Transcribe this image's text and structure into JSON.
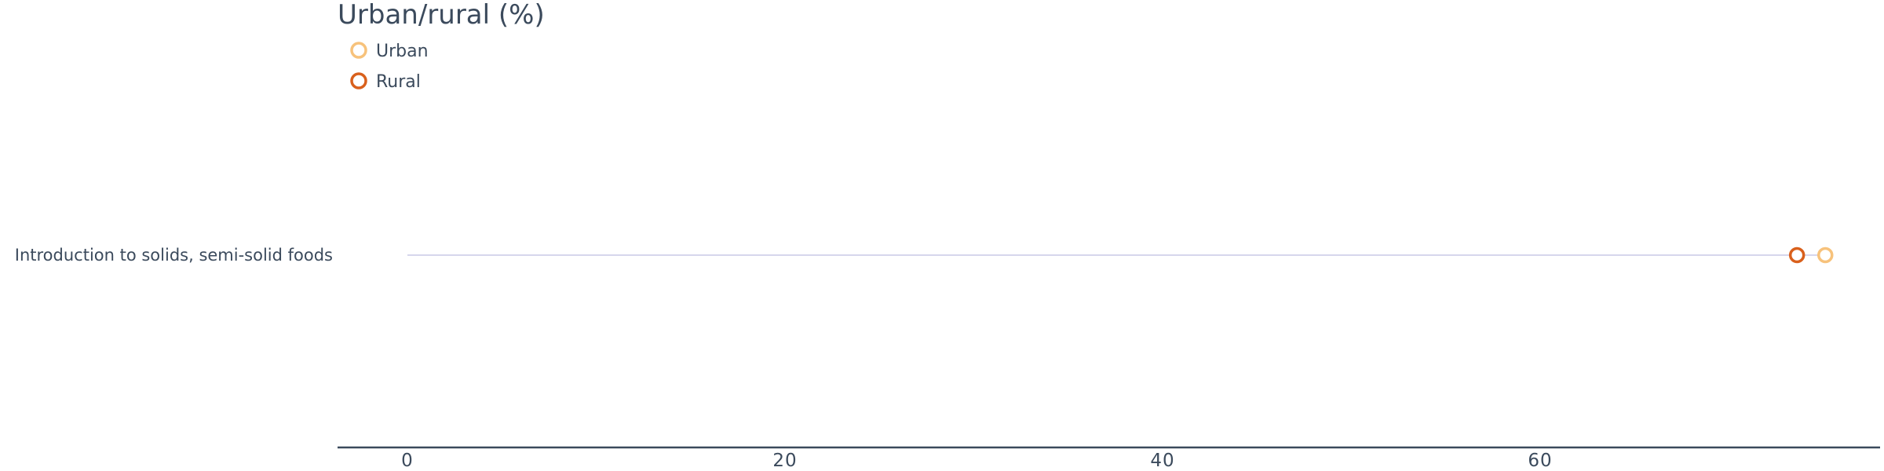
{
  "chart_data": {
    "type": "dot",
    "title": "Urban/rural (%)",
    "categories": [
      "Introduction to solids, semi-solid foods"
    ],
    "series": [
      {
        "name": "Urban",
        "values": [
          75.1
        ],
        "color": "#f7c27b"
      },
      {
        "name": "Rural",
        "values": [
          73.6
        ],
        "color": "#d9601c"
      }
    ],
    "x_ticks": [
      0,
      20,
      40,
      60
    ],
    "xlim": [
      -3.7,
      78
    ],
    "grid": false,
    "legend_position": "top-left",
    "connector_color": "#c9c9e6",
    "axis_color": "#3b4a5c"
  }
}
